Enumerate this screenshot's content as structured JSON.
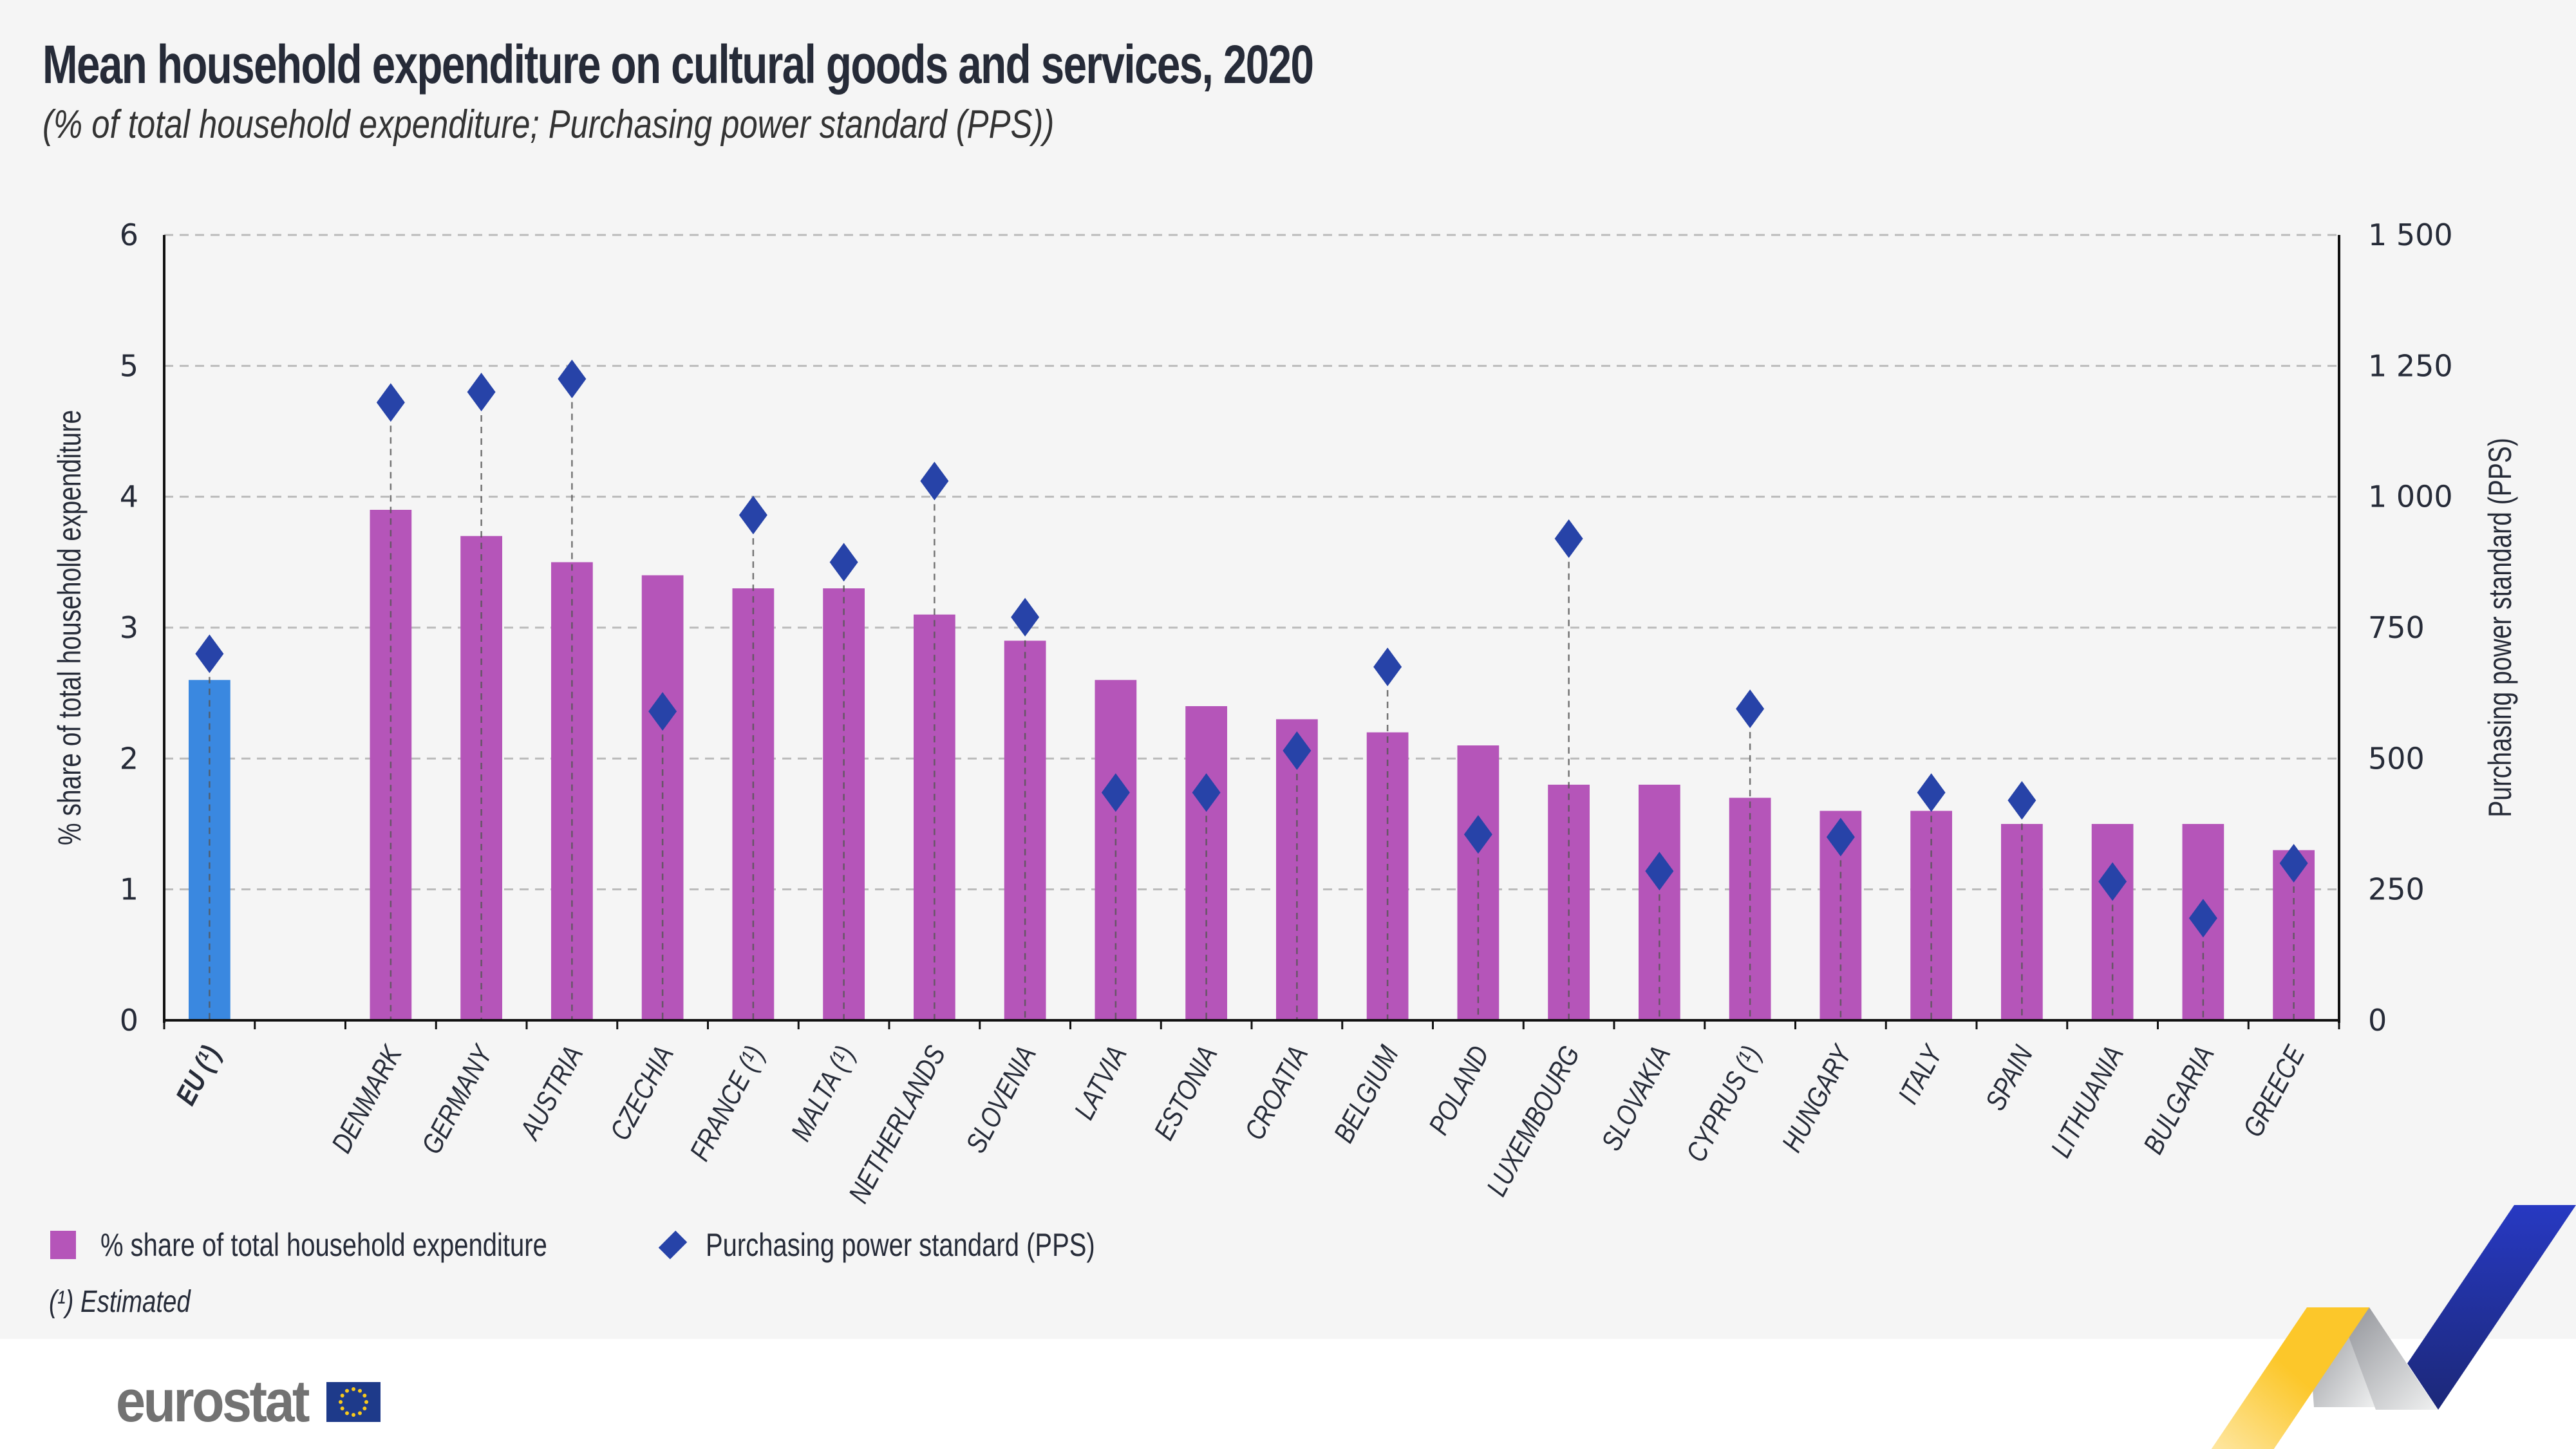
{
  "header": {
    "title": "Mean household expenditure on cultural goods and services, 2020",
    "subtitle": "(% of total household expenditure; Purchasing power standard (PPS))"
  },
  "legend": {
    "bar_label": "% share of total household expenditure",
    "diamond_label": "Purchasing power standard (PPS)"
  },
  "footnote": "(¹) Estimated",
  "logo": {
    "text": "eurostat"
  },
  "colors": {
    "bar": "#b555b9",
    "eu_bar": "#3a88e0",
    "diamond": "#2743a8",
    "grid": "#bbbbbb",
    "text": "#262b38"
  },
  "chart_data": {
    "type": "bar",
    "title": "Mean household expenditure on cultural goods and services, 2020",
    "subtitle": "(% of total household expenditure; Purchasing power standard (PPS))",
    "categories": [
      "EU (¹)",
      "",
      "DENMARK",
      "GERMANY",
      "AUSTRIA",
      "CZECHIA",
      "FRANCE (¹)",
      "MALTA (¹)",
      "NETHERLANDS",
      "SLOVENIA",
      "LATVIA",
      "ESTONIA",
      "CROATIA",
      "BELGIUM",
      "POLAND",
      "LUXEMBOURG",
      "SLOVAKIA",
      "CYPRUS (¹)",
      "HUNGARY",
      "ITALY",
      "SPAIN",
      "LITHUANIA",
      "BULGARIA",
      "GREECE"
    ],
    "series": [
      {
        "name": "% share of total household expenditure",
        "axis": "left",
        "type": "bar",
        "values": [
          2.6,
          null,
          3.9,
          3.7,
          3.5,
          3.4,
          3.3,
          3.3,
          3.1,
          2.9,
          2.6,
          2.4,
          2.3,
          2.2,
          2.1,
          1.8,
          1.8,
          1.7,
          1.6,
          1.6,
          1.5,
          1.5,
          1.5,
          1.3
        ]
      },
      {
        "name": "Purchasing power standard (PPS)",
        "axis": "right",
        "type": "scatter",
        "values": [
          700,
          null,
          1180,
          1200,
          1225,
          590,
          965,
          875,
          1030,
          770,
          435,
          435,
          515,
          675,
          355,
          920,
          285,
          595,
          350,
          435,
          420,
          265,
          195,
          300
        ]
      }
    ],
    "highlight_category": "EU (¹)",
    "ylabel": "% share of total household expenditure",
    "ylim": [
      0,
      6
    ],
    "yticks": [
      "0",
      "1",
      "2",
      "3",
      "4",
      "5",
      "6"
    ],
    "y2label": "Purchasing power standard (PPS)",
    "y2lim": [
      0,
      1500
    ],
    "y2ticks": [
      "0",
      "250",
      "500",
      "750",
      "1 000",
      "1 250",
      "1 500"
    ],
    "grid": true,
    "legend_position": "bottom-left"
  }
}
